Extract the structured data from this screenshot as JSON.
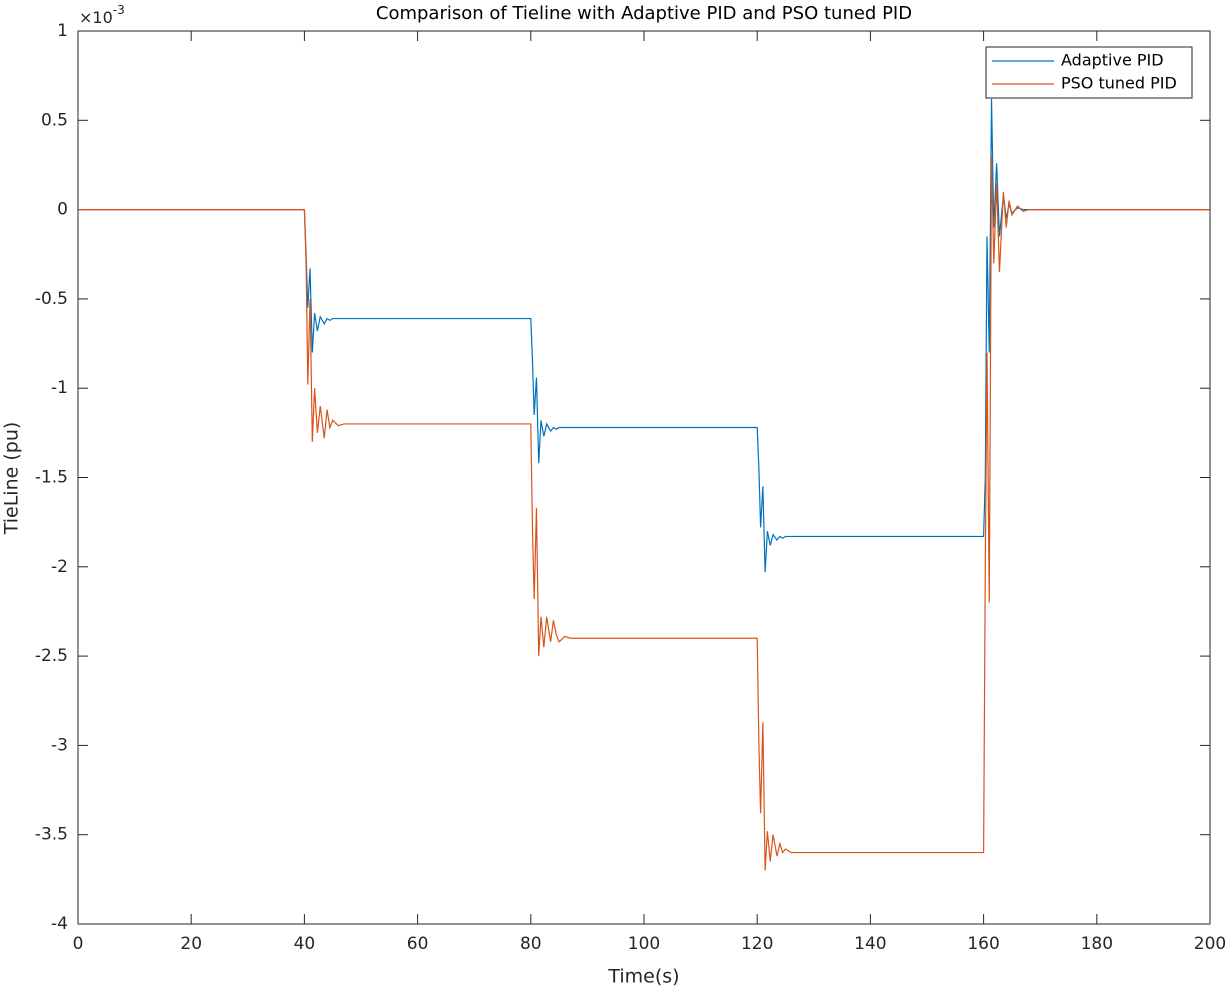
{
  "chart_data": {
    "type": "line",
    "title": "Comparison of Tieline with Adaptive PID and PSO tuned PID",
    "x_label": "Time(s)",
    "y_label": "TieLine (pu)",
    "y_multiplier": {
      "base": "×10",
      "exponent": "-3"
    },
    "x": [
      0,
      40,
      40.3,
      40.6,
      41.0,
      41.4,
      41.8,
      42.3,
      42.8,
      43.5,
      44,
      44.5,
      45,
      46,
      47,
      48,
      50,
      80,
      80.3,
      80.6,
      81.0,
      81.4,
      81.8,
      82.3,
      82.8,
      83.5,
      84,
      84.5,
      85,
      86,
      87,
      88,
      90,
      120,
      120.3,
      120.6,
      121.0,
      121.4,
      121.8,
      122.3,
      122.8,
      123.5,
      124,
      124.5,
      125,
      126,
      127,
      128,
      130,
      160,
      160.3,
      160.6,
      161.0,
      161.4,
      161.8,
      162.3,
      162.8,
      163.5,
      164,
      164.5,
      165,
      166,
      167,
      168,
      170,
      173,
      200
    ],
    "series": [
      {
        "name": "Adaptive PID",
        "color": "#0072bd",
        "values": [
          0,
          0,
          -0.25,
          -0.55,
          -0.33,
          -0.8,
          -0.58,
          -0.68,
          -0.6,
          -0.64,
          -0.61,
          -0.62,
          -0.61,
          -0.61,
          -0.61,
          -0.61,
          -0.61,
          -0.61,
          -0.85,
          -1.15,
          -0.94,
          -1.42,
          -1.18,
          -1.27,
          -1.2,
          -1.24,
          -1.22,
          -1.23,
          -1.22,
          -1.22,
          -1.22,
          -1.22,
          -1.22,
          -1.22,
          -1.45,
          -1.78,
          -1.55,
          -2.03,
          -1.8,
          -1.88,
          -1.82,
          -1.85,
          -1.83,
          -1.84,
          -1.83,
          -1.83,
          -1.83,
          -1.83,
          -1.83,
          -1.83,
          -1.5,
          -0.15,
          -0.8,
          0.62,
          -0.1,
          0.26,
          -0.15,
          0.08,
          -0.05,
          0.03,
          -0.02,
          0.01,
          0,
          0,
          0,
          0,
          0
        ]
      },
      {
        "name": "PSO tuned PID",
        "color": "#d95319",
        "values": [
          0,
          0,
          -0.3,
          -0.98,
          -0.5,
          -1.3,
          -1.0,
          -1.25,
          -1.1,
          -1.28,
          -1.12,
          -1.22,
          -1.18,
          -1.21,
          -1.2,
          -1.2,
          -1.2,
          -1.2,
          -1.8,
          -2.18,
          -1.67,
          -2.5,
          -2.28,
          -2.45,
          -2.28,
          -2.42,
          -2.3,
          -2.38,
          -2.42,
          -2.39,
          -2.4,
          -2.4,
          -2.4,
          -2.4,
          -3.0,
          -3.38,
          -2.87,
          -3.7,
          -3.48,
          -3.65,
          -3.5,
          -3.62,
          -3.55,
          -3.6,
          -3.58,
          -3.6,
          -3.6,
          -3.6,
          -3.6,
          -3.6,
          -2.0,
          -0.8,
          -2.2,
          0.3,
          -0.3,
          0.15,
          -0.35,
          0.1,
          -0.1,
          0.05,
          -0.03,
          0.02,
          -0.01,
          0,
          0,
          0,
          0
        ]
      }
    ],
    "xlim": [
      0,
      200
    ],
    "xticks": [
      0,
      20,
      40,
      60,
      80,
      100,
      120,
      140,
      160,
      180,
      200
    ],
    "ylim": [
      -4,
      1
    ],
    "yticks": [
      -4,
      -3.5,
      -3,
      -2.5,
      -2,
      -1.5,
      -1,
      -0.5,
      0,
      0.5,
      1
    ],
    "grid": false,
    "legend": "northeast"
  }
}
